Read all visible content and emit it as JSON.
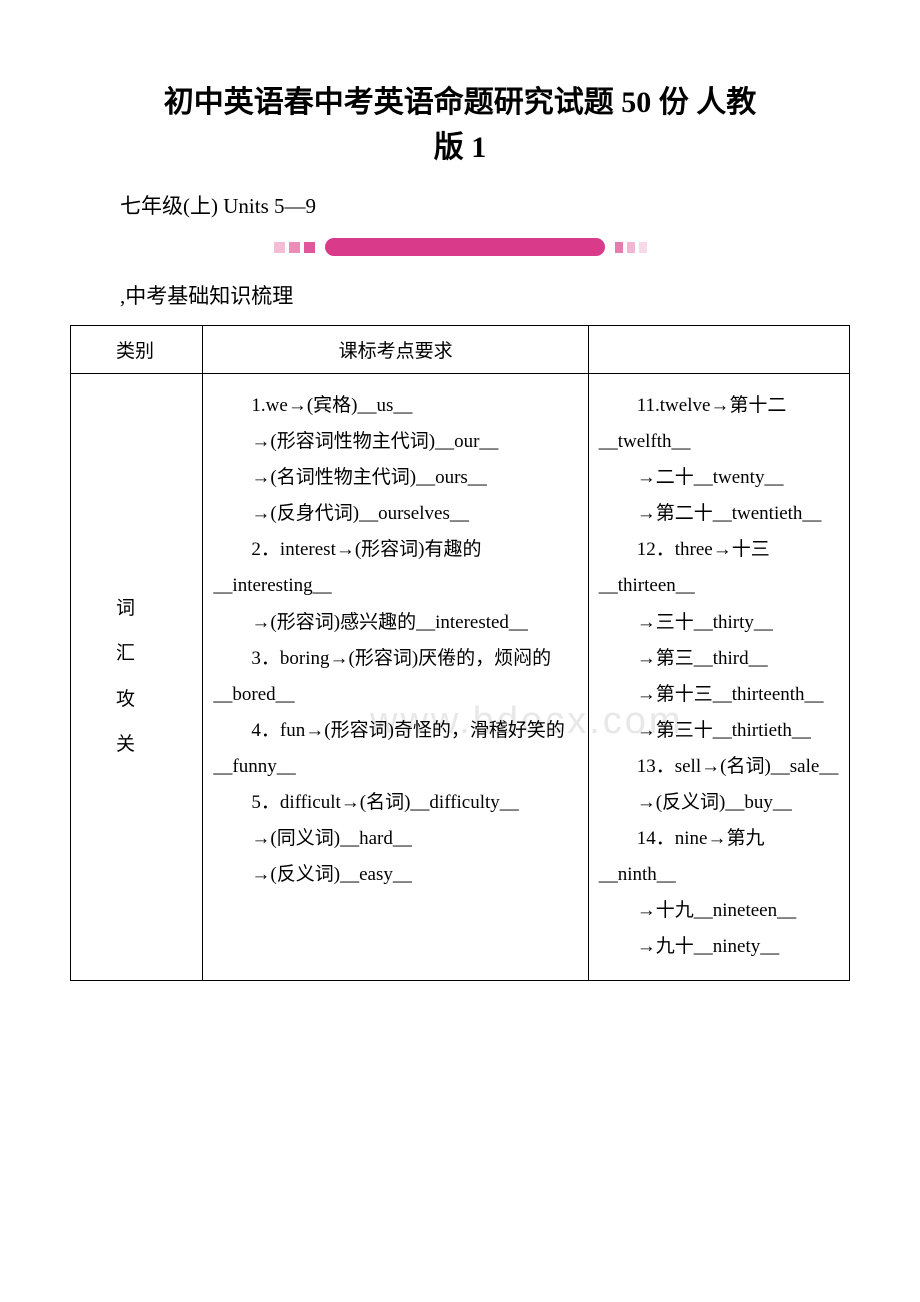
{
  "title_line1": "初中英语春中考英语命题研究试题 50 份 人教",
  "title_line2": "版 1",
  "subtitle": "七年级(上) Units 5—9",
  "section_heading": ",中考基础知识梳理",
  "watermark": "www.bdocx.com",
  "divider_colors": {
    "sq1": "#f4bcd5",
    "sq2": "#ec8db7",
    "sq3": "#e0569a",
    "main": "#d93a8a",
    "r1": "#e77bb0",
    "r2": "#f2b6d2",
    "r3": "#f8d9e7"
  },
  "table": {
    "header_col1": "类别",
    "header_col2": "课标考点要求",
    "row_label_chars": [
      "词",
      "汇",
      "攻",
      "关"
    ],
    "col2_lines": [
      "　　1.we→(宾格)__us__",
      "　　→(形容词性物主代词)__our__",
      "　　→(名词性物主代词)__ours__",
      "　　→(反身代词)__ourselves__",
      "　　2．interest→(形容词)有趣的__interesting__",
      "　　→(形容词)感兴趣的__interested__",
      "　　3．boring→(形容词)厌倦的，烦闷的__bored__",
      "　　4．fun→(形容词)奇怪的，滑稽好笑的__funny__",
      "　　5．difficult→(名词)__difficulty__",
      "　　→(同义词)__hard__",
      "　　→(反义词)__easy__"
    ],
    "col3_lines": [
      "　　11.twelve→第十二__twelfth__",
      "　　→二十__twenty__",
      "　　→第二十__twentieth__",
      "　　12．three→十三__thirteen__",
      "　　→三十__thirty__",
      "　　→第三__third__",
      "　　→第十三__thirteenth__",
      "　　→第三十__thirtieth__",
      "　　13．sell→(名词)__sale__",
      "　　→(反义词)__buy__",
      "　　14．nine→第九__ninth__",
      "　　→十九__nineteen__",
      "　　→九十__ninety__"
    ]
  }
}
